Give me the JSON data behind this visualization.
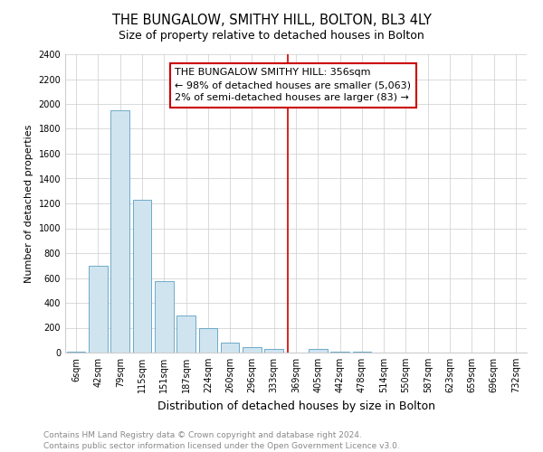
{
  "title": "THE BUNGALOW, SMITHY HILL, BOLTON, BL3 4LY",
  "subtitle": "Size of property relative to detached houses in Bolton",
  "xlabel": "Distribution of detached houses by size in Bolton",
  "ylabel": "Number of detached properties",
  "bar_labels": [
    "6sqm",
    "42sqm",
    "79sqm",
    "115sqm",
    "151sqm",
    "187sqm",
    "224sqm",
    "260sqm",
    "296sqm",
    "333sqm",
    "369sqm",
    "405sqm",
    "442sqm",
    "478sqm",
    "514sqm",
    "550sqm",
    "587sqm",
    "623sqm",
    "659sqm",
    "696sqm",
    "732sqm"
  ],
  "bar_values": [
    10,
    700,
    1950,
    1230,
    575,
    300,
    200,
    80,
    45,
    30,
    0,
    30,
    10,
    8,
    3,
    0,
    0,
    0,
    0,
    0,
    0
  ],
  "bar_color": "#d0e4f0",
  "bar_edgecolor": "#5a9fc0",
  "vline_color": "#cc0000",
  "annotation_title": "THE BUNGALOW SMITHY HILL: 356sqm",
  "annotation_line1": "← 98% of detached houses are smaller (5,063)",
  "annotation_line2": "2% of semi-detached houses are larger (83) →",
  "annotation_box_edgecolor": "#cc0000",
  "ylim": [
    0,
    2400
  ],
  "yticks": [
    0,
    200,
    400,
    600,
    800,
    1000,
    1200,
    1400,
    1600,
    1800,
    2000,
    2200,
    2400
  ],
  "footer_line1": "Contains HM Land Registry data © Crown copyright and database right 2024.",
  "footer_line2": "Contains public sector information licensed under the Open Government Licence v3.0.",
  "title_fontsize": 10.5,
  "subtitle_fontsize": 9,
  "xlabel_fontsize": 9,
  "ylabel_fontsize": 8,
  "tick_fontsize": 7,
  "annotation_fontsize": 8,
  "footer_fontsize": 6.5
}
